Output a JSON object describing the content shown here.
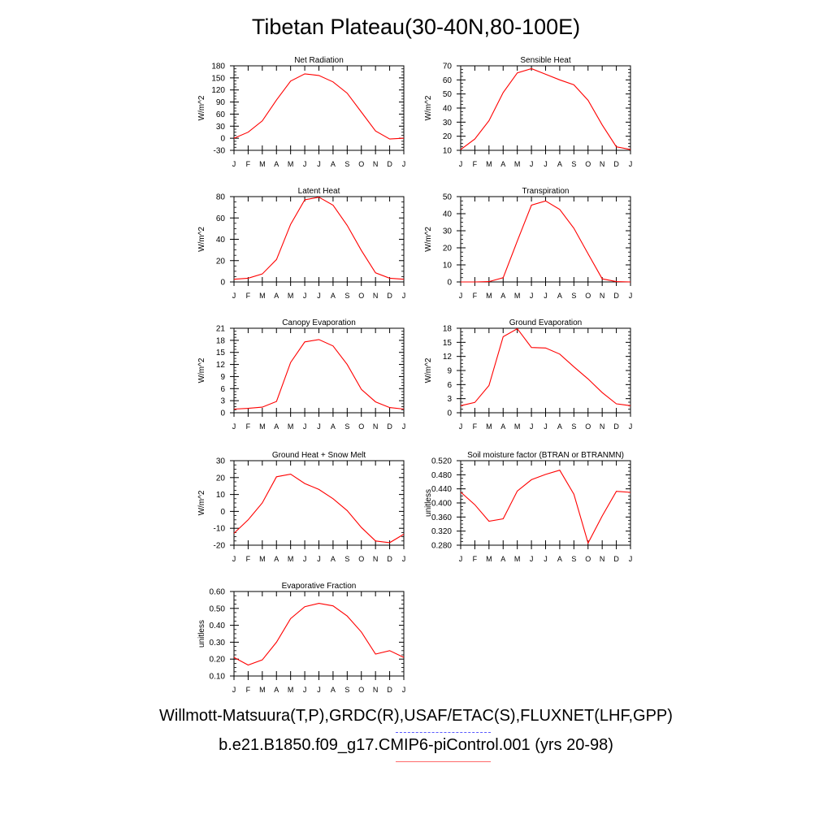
{
  "title": "Tibetan Plateau(30-40N,80-100E)",
  "legend": {
    "obs_label": "Willmott-Matsuura(T,P),GRDC(R),USAF/ETAC(S),FLUXNET(LHF,GPP)",
    "model_label": "b.e21.B1850.f09_g17.CMIP6-piControl.001 (yrs 20-98)",
    "obs_color": "#5a5aff",
    "model_color": "#ff0000"
  },
  "chart_data": [
    {
      "type": "line",
      "title": "Net Radiation",
      "ylabel": "W/m^2",
      "x": [
        "J",
        "F",
        "M",
        "A",
        "M",
        "J",
        "J",
        "A",
        "S",
        "O",
        "N",
        "D",
        "J"
      ],
      "ylim": [
        -30,
        180
      ],
      "yticks": [
        "-30",
        "0",
        "30",
        "60",
        "90",
        "120",
        "150",
        "180"
      ],
      "series": [
        {
          "values": [
            0,
            15,
            43,
            95,
            142,
            160,
            156,
            140,
            112,
            65,
            18,
            -2,
            0
          ],
          "color": "#ff0000"
        }
      ]
    },
    {
      "type": "line",
      "title": "Sensible Heat",
      "ylabel": "W/m^2",
      "x": [
        "J",
        "F",
        "M",
        "A",
        "M",
        "J",
        "J",
        "A",
        "S",
        "O",
        "N",
        "D",
        "J"
      ],
      "ylim": [
        10,
        70
      ],
      "yticks": [
        "10",
        "20",
        "30",
        "40",
        "50",
        "60",
        "70"
      ],
      "series": [
        {
          "values": [
            10.5,
            18,
            31,
            51,
            65,
            68,
            64,
            60,
            56.5,
            45.5,
            28,
            12.5,
            10.5
          ],
          "color": "#ff0000"
        }
      ]
    },
    {
      "type": "line",
      "title": "Latent Heat",
      "ylabel": "W/m^2",
      "x": [
        "J",
        "F",
        "M",
        "A",
        "M",
        "J",
        "J",
        "A",
        "S",
        "O",
        "N",
        "D",
        "J"
      ],
      "ylim": [
        0,
        80
      ],
      "yticks": [
        "0",
        "20",
        "40",
        "60",
        "80"
      ],
      "series": [
        {
          "values": [
            2.5,
            3.5,
            7.5,
            21,
            54,
            77,
            79.5,
            72,
            53,
            29.5,
            8.5,
            3.5,
            2.5
          ],
          "color": "#ff0000"
        }
      ]
    },
    {
      "type": "line",
      "title": "Transpiration",
      "ylabel": "W/m^2",
      "x": [
        "J",
        "F",
        "M",
        "A",
        "M",
        "J",
        "J",
        "A",
        "S",
        "O",
        "N",
        "D",
        "J"
      ],
      "ylim": [
        0,
        50
      ],
      "yticks": [
        "0",
        "10",
        "20",
        "30",
        "40",
        "50"
      ],
      "series": [
        {
          "values": [
            0,
            0,
            0.2,
            2.5,
            24,
            45,
            47.5,
            42.5,
            31.5,
            16.5,
            1.8,
            0.2,
            0
          ],
          "color": "#ff0000"
        }
      ]
    },
    {
      "type": "line",
      "title": "Canopy Evaporation",
      "ylabel": "W/m^2",
      "x": [
        "J",
        "F",
        "M",
        "A",
        "M",
        "J",
        "J",
        "A",
        "S",
        "O",
        "N",
        "D",
        "J"
      ],
      "ylim": [
        0,
        21
      ],
      "yticks": [
        "0",
        "3",
        "6",
        "9",
        "12",
        "15",
        "18",
        "21"
      ],
      "series": [
        {
          "values": [
            0.9,
            1.1,
            1.4,
            2.8,
            12.5,
            17.6,
            18.2,
            16.6,
            12,
            5.8,
            2.7,
            1.3,
            0.9
          ],
          "color": "#ff0000"
        }
      ]
    },
    {
      "type": "line",
      "title": "Ground Evaporation",
      "ylabel": "W/m^2",
      "x": [
        "J",
        "F",
        "M",
        "A",
        "M",
        "J",
        "J",
        "A",
        "S",
        "O",
        "N",
        "D",
        "J"
      ],
      "ylim": [
        0,
        18
      ],
      "yticks": [
        "0",
        "3",
        "6",
        "9",
        "12",
        "15",
        "18"
      ],
      "series": [
        {
          "values": [
            1.5,
            2.2,
            5.8,
            16.2,
            17.9,
            13.9,
            13.8,
            12.5,
            9.8,
            7.2,
            4.3,
            1.9,
            1.5
          ],
          "color": "#ff0000"
        }
      ]
    },
    {
      "type": "line",
      "title": "Ground Heat + Snow Melt",
      "ylabel": "W/m^2",
      "x": [
        "J",
        "F",
        "M",
        "A",
        "M",
        "J",
        "J",
        "A",
        "S",
        "O",
        "N",
        "D",
        "J"
      ],
      "ylim": [
        -20,
        30
      ],
      "yticks": [
        "-20",
        "-10",
        "0",
        "10",
        "20",
        "30"
      ],
      "series": [
        {
          "values": [
            -13,
            -5,
            5,
            20.5,
            22,
            16.5,
            13,
            7.5,
            0.5,
            -9.5,
            -17.5,
            -18.5,
            -13.5
          ],
          "color": "#ff0000"
        }
      ]
    },
    {
      "type": "line",
      "title": "Soil moisture factor (BTRAN or BTRANMN)",
      "ylabel": "unitless",
      "x": [
        "J",
        "F",
        "M",
        "A",
        "M",
        "J",
        "J",
        "A",
        "S",
        "O",
        "N",
        "D",
        "J"
      ],
      "ylim": [
        0.28,
        0.52
      ],
      "yticks": [
        "0.280",
        "0.320",
        "0.360",
        "0.400",
        "0.440",
        "0.480",
        "0.520"
      ],
      "series": [
        {
          "values": [
            0.431,
            0.395,
            0.348,
            0.355,
            0.434,
            0.466,
            0.481,
            0.493,
            0.425,
            0.286,
            0.363,
            0.433,
            0.43
          ],
          "color": "#ff0000"
        }
      ]
    },
    {
      "type": "line",
      "title": "Evaporative Fraction",
      "ylabel": "unitless",
      "x": [
        "J",
        "F",
        "M",
        "A",
        "M",
        "J",
        "J",
        "A",
        "S",
        "O",
        "N",
        "D",
        "J"
      ],
      "ylim": [
        0.1,
        0.6
      ],
      "yticks": [
        "0.10",
        "0.20",
        "0.30",
        "0.40",
        "0.50",
        "0.60"
      ],
      "series": [
        {
          "values": [
            0.21,
            0.165,
            0.195,
            0.3,
            0.44,
            0.51,
            0.53,
            0.515,
            0.455,
            0.36,
            0.23,
            0.25,
            0.21
          ],
          "color": "#ff0000"
        }
      ]
    }
  ]
}
